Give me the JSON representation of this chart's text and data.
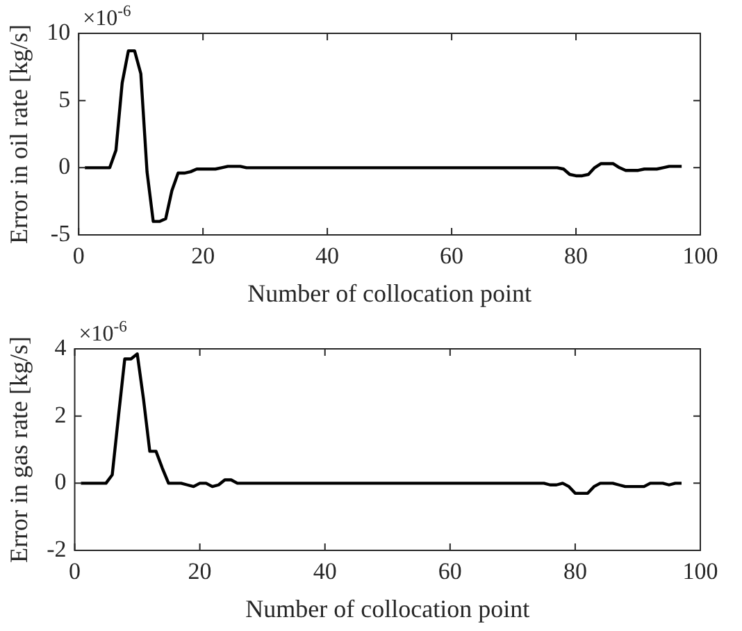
{
  "chart_data": [
    {
      "type": "line",
      "xlabel": "Number of collocation point",
      "ylabel": "Error in oil rate [kg/s]",
      "annotations": [
        "×10$^{-6}$"
      ],
      "x": [
        1,
        2,
        3,
        4,
        5,
        6,
        7,
        8,
        9,
        10,
        11,
        12,
        13,
        14,
        15,
        16,
        17,
        18,
        19,
        20,
        21,
        22,
        23,
        24,
        25,
        26,
        27,
        28,
        29,
        30,
        31,
        32,
        33,
        34,
        35,
        36,
        37,
        38,
        39,
        40,
        41,
        42,
        43,
        44,
        45,
        46,
        47,
        48,
        49,
        50,
        51,
        52,
        53,
        54,
        55,
        56,
        57,
        58,
        59,
        60,
        61,
        62,
        63,
        64,
        65,
        66,
        67,
        68,
        69,
        70,
        71,
        72,
        73,
        74,
        75,
        76,
        77,
        78,
        79,
        80,
        81,
        82,
        83,
        84,
        85,
        86,
        87,
        88,
        89,
        90,
        91,
        92,
        93,
        94,
        95,
        96,
        97
      ],
      "series": [
        {
          "color": "#000000",
          "values": [
            0,
            0,
            0,
            0,
            0,
            1.3,
            6.3,
            8.7,
            8.7,
            7,
            -0.3,
            -4,
            -4,
            -3.8,
            -1.7,
            -0.4,
            -0.4,
            -0.3,
            -0.1,
            -0.1,
            -0.1,
            -0.1,
            0,
            0.1,
            0.1,
            0.1,
            0,
            0,
            0,
            0,
            0,
            0,
            0,
            0,
            0,
            0,
            0,
            0,
            0,
            0,
            0,
            0,
            0,
            0,
            0,
            0,
            0,
            0,
            0,
            0,
            0,
            0,
            0,
            0,
            0,
            0,
            0,
            0,
            0,
            0,
            0,
            0,
            0,
            0,
            0,
            0,
            0,
            0,
            0,
            0,
            0,
            0,
            0,
            0,
            0,
            0,
            0,
            -0.1,
            -0.5,
            -0.6,
            -0.6,
            -0.5,
            0,
            0.3,
            0.3,
            0.3,
            0,
            -0.2,
            -0.2,
            -0.2,
            -0.1,
            -0.1,
            -0.1,
            0,
            0.1,
            0.1,
            0.1
          ]
        }
      ],
      "xlim": [
        0,
        100
      ],
      "xticks": [
        0,
        20,
        40,
        60,
        80,
        100
      ],
      "ylim": [
        -5,
        10
      ],
      "yticks": [
        -5,
        0,
        5,
        10
      ],
      "grid": false,
      "legend": false,
      "marker": "none",
      "line_style": "solid"
    },
    {
      "type": "line",
      "xlabel": "Number of collocation point",
      "ylabel": "Error in gas rate [kg/s]",
      "annotations": [
        "×10$^{-6}$"
      ],
      "x": [
        1,
        2,
        3,
        4,
        5,
        6,
        7,
        8,
        9,
        10,
        11,
        12,
        13,
        14,
        15,
        16,
        17,
        18,
        19,
        20,
        21,
        22,
        23,
        24,
        25,
        26,
        27,
        28,
        29,
        30,
        31,
        32,
        33,
        34,
        35,
        36,
        37,
        38,
        39,
        40,
        41,
        42,
        43,
        44,
        45,
        46,
        47,
        48,
        49,
        50,
        51,
        52,
        53,
        54,
        55,
        56,
        57,
        58,
        59,
        60,
        61,
        62,
        63,
        64,
        65,
        66,
        67,
        68,
        69,
        70,
        71,
        72,
        73,
        74,
        75,
        76,
        77,
        78,
        79,
        80,
        81,
        82,
        83,
        84,
        85,
        86,
        87,
        88,
        89,
        90,
        91,
        92,
        93,
        94,
        95,
        96,
        97
      ],
      "series": [
        {
          "color": "#000000",
          "values": [
            0,
            0,
            0,
            0,
            0,
            0.25,
            2,
            3.7,
            3.7,
            3.85,
            2.5,
            0.95,
            0.95,
            0.45,
            0,
            0,
            0,
            -0.05,
            -0.1,
            0,
            0,
            -0.1,
            -0.05,
            0.1,
            0.1,
            0,
            0,
            0,
            0,
            0,
            0,
            0,
            0,
            0,
            0,
            0,
            0,
            0,
            0,
            0,
            0,
            0,
            0,
            0,
            0,
            0,
            0,
            0,
            0,
            0,
            0,
            0,
            0,
            0,
            0,
            0,
            0,
            0,
            0,
            0,
            0,
            0,
            0,
            0,
            0,
            0,
            0,
            0,
            0,
            0,
            0,
            0,
            0,
            0,
            0,
            -0.05,
            -0.05,
            0,
            -0.1,
            -0.3,
            -0.3,
            -0.3,
            -0.1,
            0,
            0,
            0,
            -0.05,
            -0.1,
            -0.1,
            -0.1,
            -0.1,
            0,
            0,
            0,
            -0.05,
            0,
            0
          ]
        }
      ],
      "xlim": [
        0,
        100
      ],
      "xticks": [
        0,
        20,
        40,
        60,
        80,
        100
      ],
      "ylim": [
        -2,
        4
      ],
      "yticks": [
        -2,
        0,
        2,
        4
      ],
      "grid": false,
      "legend": false,
      "marker": "none",
      "line_style": "solid"
    }
  ]
}
